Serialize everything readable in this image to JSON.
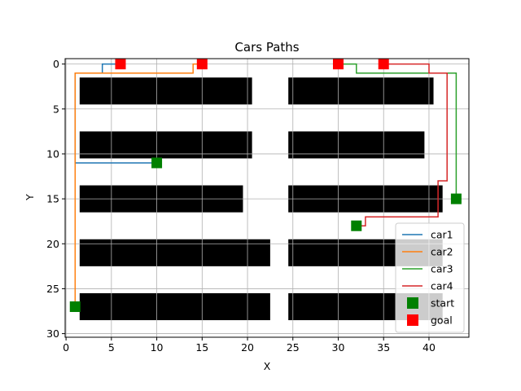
{
  "chart_data": {
    "type": "line",
    "title": "Cars Paths",
    "xlabel": "X",
    "ylabel": "Y",
    "xlim": [
      -0.1,
      44.4
    ],
    "ylim": [
      30.4,
      -0.6
    ],
    "y_inverted": true,
    "grid": true,
    "xticks": [
      0,
      5,
      10,
      15,
      20,
      25,
      30,
      35,
      40
    ],
    "yticks": [
      0,
      5,
      10,
      15,
      20,
      25,
      30
    ],
    "obstacles_color": "#000000",
    "obstacles": [
      {
        "x0": 1.5,
        "x1": 20.5,
        "y0": 1.5,
        "y1": 4.5
      },
      {
        "x0": 24.5,
        "x1": 40.5,
        "y0": 1.5,
        "y1": 4.5
      },
      {
        "x0": 1.5,
        "x1": 20.5,
        "y0": 7.5,
        "y1": 10.5
      },
      {
        "x0": 24.5,
        "x1": 39.5,
        "y0": 7.5,
        "y1": 10.5
      },
      {
        "x0": 1.5,
        "x1": 19.5,
        "y0": 13.5,
        "y1": 16.5
      },
      {
        "x0": 24.5,
        "x1": 41.5,
        "y0": 13.5,
        "y1": 16.5
      },
      {
        "x0": 1.5,
        "x1": 22.5,
        "y0": 19.5,
        "y1": 22.5
      },
      {
        "x0": 24.5,
        "x1": 41.5,
        "y0": 19.5,
        "y1": 22.5
      },
      {
        "x0": 1.5,
        "x1": 22.5,
        "y0": 25.5,
        "y1": 28.5
      },
      {
        "x0": 24.5,
        "x1": 41.5,
        "y0": 25.5,
        "y1": 28.5
      }
    ],
    "series": [
      {
        "name": "car1",
        "color": "#1f77b4",
        "points": [
          [
            10,
            11
          ],
          [
            1,
            11
          ],
          [
            1,
            1
          ],
          [
            4,
            1
          ],
          [
            4,
            0
          ],
          [
            6,
            0
          ]
        ]
      },
      {
        "name": "car2",
        "color": "#ff7f0e",
        "points": [
          [
            1,
            27
          ],
          [
            1,
            1
          ],
          [
            14,
            1
          ],
          [
            14,
            0
          ],
          [
            15,
            0
          ]
        ]
      },
      {
        "name": "car3",
        "color": "#2ca02c",
        "points": [
          [
            43,
            15
          ],
          [
            43,
            1
          ],
          [
            32,
            1
          ],
          [
            32,
            0
          ],
          [
            30,
            0
          ]
        ]
      },
      {
        "name": "car4",
        "color": "#d62728",
        "points": [
          [
            32,
            18
          ],
          [
            33,
            18
          ],
          [
            33,
            17
          ],
          [
            41,
            17
          ],
          [
            41,
            13
          ],
          [
            42,
            13
          ],
          [
            42,
            1
          ],
          [
            40,
            1
          ],
          [
            40,
            0
          ],
          [
            35,
            0
          ]
        ]
      }
    ],
    "markers": [
      {
        "name": "start",
        "color": "#008000",
        "points": [
          [
            10,
            11
          ],
          [
            1,
            27
          ],
          [
            43,
            15
          ],
          [
            32,
            18
          ]
        ]
      },
      {
        "name": "goal",
        "color": "#ff0000",
        "points": [
          [
            6,
            0
          ],
          [
            15,
            0
          ],
          [
            30,
            0
          ],
          [
            35,
            0
          ]
        ]
      }
    ],
    "legend_position": "lower-right"
  }
}
